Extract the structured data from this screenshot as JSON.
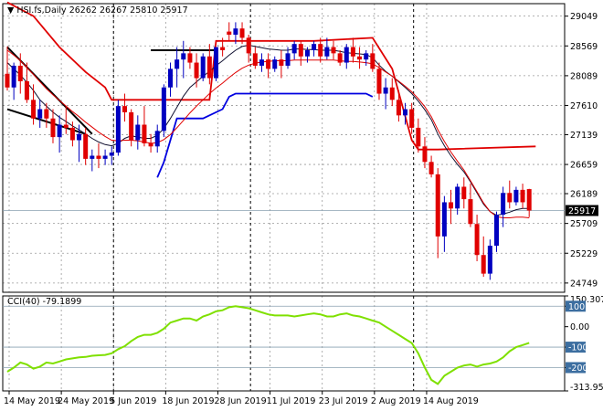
{
  "chart_data": [
    {
      "type": "candlestick",
      "symbol": "HSI.fs,Daily",
      "ohlc_header": "26262 26267 25810 25917",
      "last_price": 25917,
      "last_price_label": "25917",
      "ylim": [
        24600,
        29250
      ],
      "y_ticks": [
        29049,
        28569,
        28089,
        27610,
        27139,
        26659,
        26189,
        25709,
        25229,
        24749
      ],
      "y_tick_labels": [
        "29049",
        "28569",
        "28089",
        "27610",
        "27139",
        "26659",
        "26189",
        "25709",
        "25229",
        "24749"
      ],
      "x_labels": [
        {
          "index": 0,
          "label": "14 May 2019"
        },
        {
          "index": 8,
          "label": "24 May 2019"
        },
        {
          "index": 16,
          "label": "5 Jun 2019"
        },
        {
          "index": 24,
          "label": "18 Jun 2019"
        },
        {
          "index": 32,
          "label": "28 Jun 2019"
        },
        {
          "index": 40,
          "label": "11 Jul 2019"
        },
        {
          "index": 48,
          "label": "23 Jul 2019"
        },
        {
          "index": 56,
          "label": "2 Aug 2019"
        },
        {
          "index": 64,
          "label": "14 Aug 2019"
        }
      ],
      "candles": [
        [
          28120,
          28560,
          27850,
          27900
        ],
        [
          27900,
          28300,
          27700,
          28250
        ],
        [
          28250,
          28450,
          27800,
          28000
        ],
        [
          28000,
          28300,
          27650,
          27700
        ],
        [
          27700,
          27950,
          27300,
          27400
        ],
        [
          27400,
          27700,
          27250,
          27550
        ],
        [
          27550,
          27650,
          27250,
          27400
        ],
        [
          27400,
          27550,
          27000,
          27100
        ],
        [
          27100,
          27450,
          26850,
          27300
        ],
        [
          27300,
          27600,
          27150,
          27250
        ],
        [
          27250,
          27350,
          26950,
          27050
        ],
        [
          27050,
          27300,
          26700,
          27150
        ],
        [
          27150,
          27250,
          26650,
          26750
        ],
        [
          26750,
          26900,
          26550,
          26800
        ],
        [
          26800,
          27000,
          26600,
          26750
        ],
        [
          26750,
          26900,
          26650,
          26800
        ],
        [
          26800,
          26950,
          26650,
          26850
        ],
        [
          26850,
          27700,
          26800,
          27600
        ],
        [
          27600,
          27800,
          27350,
          27500
        ],
        [
          27500,
          27550,
          26950,
          27050
        ],
        [
          27050,
          27450,
          26900,
          27300
        ],
        [
          27300,
          27600,
          26950,
          27000
        ],
        [
          27000,
          27150,
          26850,
          26950
        ],
        [
          26950,
          27300,
          26850,
          27200
        ],
        [
          27200,
          27950,
          27100,
          27900
        ],
        [
          27900,
          28300,
          27750,
          28200
        ],
        [
          28200,
          28550,
          27900,
          28350
        ],
        [
          28350,
          28650,
          28050,
          28450
        ],
        [
          28450,
          28550,
          28200,
          28300
        ],
        [
          28300,
          28450,
          27900,
          28050
        ],
        [
          28050,
          28450,
          28000,
          28400
        ],
        [
          28400,
          28600,
          27950,
          28050
        ],
        [
          28050,
          28550,
          28000,
          28550
        ],
        [
          28550,
          28700,
          28400,
          28500
        ],
        [
          28800,
          28950,
          28650,
          28750
        ],
        [
          28750,
          28950,
          28600,
          28850
        ],
        [
          28850,
          28950,
          28600,
          28700
        ],
        [
          28700,
          28750,
          28300,
          28450
        ],
        [
          28450,
          28550,
          28200,
          28250
        ],
        [
          28250,
          28450,
          28150,
          28350
        ],
        [
          28350,
          28450,
          28050,
          28200
        ],
        [
          28200,
          28400,
          28150,
          28350
        ],
        [
          28350,
          28500,
          28050,
          28250
        ],
        [
          28250,
          28550,
          28200,
          28450
        ],
        [
          28450,
          28650,
          28350,
          28600
        ],
        [
          28600,
          28650,
          28250,
          28400
        ],
        [
          28400,
          28550,
          28300,
          28500
        ],
        [
          28500,
          28650,
          28400,
          28600
        ],
        [
          28600,
          28700,
          28300,
          28400
        ],
        [
          28400,
          28700,
          28350,
          28550
        ],
        [
          28550,
          28650,
          28350,
          28450
        ],
        [
          28450,
          28500,
          28250,
          28300
        ],
        [
          28300,
          28600,
          28200,
          28550
        ],
        [
          28550,
          28700,
          28300,
          28400
        ],
        [
          28400,
          28550,
          28200,
          28350
        ],
        [
          28350,
          28500,
          28250,
          28450
        ],
        [
          28450,
          28600,
          28150,
          28200
        ],
        [
          28200,
          28300,
          27700,
          27800
        ],
        [
          27800,
          28050,
          27550,
          27900
        ],
        [
          27900,
          28050,
          27600,
          27700
        ],
        [
          27700,
          27850,
          27350,
          27450
        ],
        [
          27450,
          27650,
          27300,
          27550
        ],
        [
          27550,
          27650,
          27150,
          27250
        ],
        [
          27250,
          27400,
          26850,
          26950
        ],
        [
          26950,
          27100,
          26600,
          26700
        ],
        [
          26700,
          26800,
          26450,
          26500
        ],
        [
          26500,
          26600,
          25150,
          25500
        ],
        [
          25500,
          26150,
          25250,
          26050
        ],
        [
          26050,
          26250,
          25700,
          25950
        ],
        [
          25950,
          26350,
          25850,
          26300
        ],
        [
          26300,
          26450,
          25950,
          26100
        ],
        [
          26100,
          26350,
          25650,
          25700
        ],
        [
          25700,
          25850,
          25100,
          25200
        ],
        [
          25200,
          25500,
          24850,
          24900
        ],
        [
          24900,
          25450,
          24800,
          25350
        ],
        [
          25350,
          25900,
          25250,
          25850
        ],
        [
          25850,
          26300,
          25650,
          26200
        ],
        [
          26200,
          26400,
          25950,
          26050
        ],
        [
          26050,
          26300,
          26000,
          26250
        ],
        [
          26250,
          26350,
          25950,
          26050
        ],
        [
          26262,
          26267,
          25810,
          25917
        ]
      ],
      "ma_black": [
        28300,
        28200,
        28100,
        27980,
        27850,
        27700,
        27600,
        27500,
        27420,
        27350,
        27280,
        27220,
        27150,
        27080,
        27020,
        26980,
        26960,
        27000,
        27080,
        27120,
        27100,
        27080,
        27080,
        27130,
        27240,
        27400,
        27580,
        27760,
        27900,
        27990,
        28080,
        28160,
        28250,
        28330,
        28420,
        28500,
        28560,
        28580,
        28560,
        28540,
        28520,
        28510,
        28500,
        28500,
        28520,
        28520,
        28510,
        28510,
        28500,
        28500,
        28500,
        28480,
        28460,
        28450,
        28440,
        28430,
        28380,
        28260,
        28160,
        28080,
        27990,
        27900,
        27800,
        27680,
        27540,
        27380,
        27150,
        26960,
        26800,
        26660,
        26540,
        26380,
        26200,
        26020,
        25900,
        25840,
        25860,
        25890,
        25930,
        25950,
        25950
      ],
      "ma_red": [
        28500,
        28420,
        28330,
        28220,
        28110,
        27990,
        27880,
        27780,
        27690,
        27600,
        27510,
        27430,
        27340,
        27260,
        27180,
        27110,
        27050,
        27040,
        27050,
        27050,
        27040,
        27020,
        27000,
        27010,
        27060,
        27140,
        27250,
        27370,
        27490,
        27600,
        27700,
        27800,
        27890,
        27970,
        28060,
        28140,
        28210,
        28260,
        28290,
        28310,
        28320,
        28330,
        28330,
        28330,
        28340,
        28340,
        28340,
        28340,
        28340,
        28340,
        28340,
        28330,
        28320,
        28320,
        28310,
        28300,
        28280,
        28220,
        28150,
        28080,
        28000,
        27920,
        27830,
        27720,
        27590,
        27430,
        27220,
        27030,
        26860,
        26710,
        26570,
        26400,
        26220,
        26040,
        25900,
        25820,
        25800,
        25800,
        25810,
        25810,
        25800
      ],
      "envelope_red_upper": [
        [
          0,
          29270
        ],
        [
          4,
          29050
        ],
        [
          8,
          28550
        ],
        [
          12,
          28150
        ],
        [
          15,
          27900
        ],
        [
          16,
          27700
        ],
        [
          17,
          27700
        ],
        [
          26,
          27700
        ],
        [
          27,
          27700
        ],
        [
          31,
          27700
        ],
        [
          32,
          28650
        ],
        [
          40,
          28650
        ],
        [
          47,
          28650
        ],
        [
          56,
          28700
        ],
        [
          59,
          28200
        ],
        [
          62,
          27050
        ],
        [
          63,
          26900
        ],
        [
          66,
          26900
        ],
        [
          81,
          26950
        ]
      ],
      "envelope_blue_lower": [
        [
          23,
          26450
        ],
        [
          24,
          26700
        ],
        [
          26,
          27400
        ],
        [
          30,
          27400
        ],
        [
          33,
          27550
        ],
        [
          34,
          27750
        ],
        [
          35,
          27800
        ],
        [
          40,
          27800
        ],
        [
          50,
          27800
        ],
        [
          55,
          27800
        ],
        [
          56,
          27750
        ]
      ],
      "trendlines": [
        {
          "from": [
            0,
            28550
          ],
          "to": [
            13,
            27150
          ]
        },
        {
          "from": [
            0,
            27550
          ],
          "to": [
            12,
            27150
          ]
        }
      ],
      "horizontal_level": {
        "from_index": 22,
        "to_index": 32,
        "value": 28500
      }
    },
    {
      "type": "line",
      "indicator_label": "CCI(40) -79.1899",
      "ylim": [
        -313.95,
        150.3071
      ],
      "y_ticks": [
        150.3071,
        100,
        0.0,
        -100,
        -200,
        -313.95
      ],
      "y_tick_labels": [
        "150.3071",
        "100",
        "0.00",
        "-100",
        "-200",
        "-313.950"
      ],
      "levels": [
        100,
        -100,
        -200
      ],
      "values": [
        -220,
        -200,
        -175,
        -185,
        -205,
        -195,
        -175,
        -180,
        -170,
        -160,
        -155,
        -150,
        -148,
        -142,
        -140,
        -138,
        -130,
        -110,
        -95,
        -70,
        -50,
        -40,
        -40,
        -30,
        -10,
        20,
        30,
        40,
        40,
        30,
        50,
        60,
        75,
        80,
        95,
        100,
        95,
        90,
        80,
        70,
        60,
        55,
        55,
        55,
        50,
        55,
        60,
        65,
        60,
        50,
        50,
        60,
        65,
        55,
        50,
        40,
        30,
        20,
        0,
        -20,
        -40,
        -60,
        -80,
        -130,
        -200,
        -260,
        -280,
        -240,
        -220,
        -200,
        -190,
        -185,
        -195,
        -185,
        -180,
        -170,
        -150,
        -120,
        -100,
        -90,
        -79
      ]
    }
  ]
}
